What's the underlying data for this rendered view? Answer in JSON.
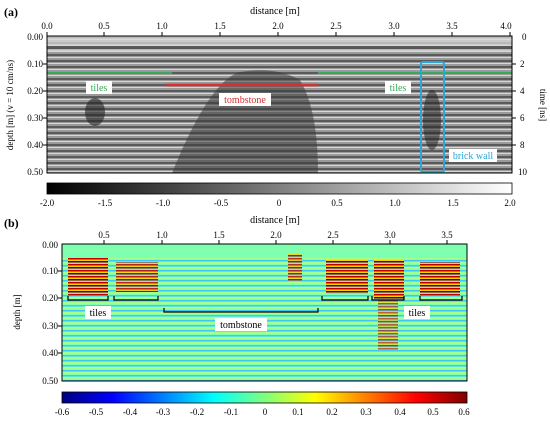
{
  "panel_a": {
    "label": "(a)",
    "top_axis": {
      "title": "distance [m]",
      "ticks": [
        "0.0",
        "0.5",
        "1.0",
        "1.5",
        "2.0",
        "2.5",
        "3.0",
        "3.5",
        "4.0"
      ]
    },
    "left_axis": {
      "title": "depth [m] (v = 10 cm/ns)",
      "ticks": [
        "0.00",
        "0.10",
        "0.20",
        "0.30",
        "0.40",
        "0.50"
      ]
    },
    "right_axis": {
      "title": "time [ns]",
      "ticks": [
        "0",
        "2",
        "4",
        "6",
        "8",
        "10"
      ]
    },
    "annotations": {
      "tiles_left": "tiles",
      "tombstone": "tombstone",
      "tiles_right": "tiles",
      "brick_wall": "brick wall"
    },
    "colorbar": {
      "scheme": "grayscale",
      "ticks": [
        "-2.0",
        "-1.5",
        "-1.0",
        "-0.5",
        "0",
        "0.5",
        "1.0",
        "1.5",
        "2.0"
      ]
    },
    "colors": {
      "tiles": "#3aa85a",
      "tombstone": "#d23232",
      "brick_wall": "#2aa6d8"
    }
  },
  "panel_b": {
    "label": "(b)",
    "top_axis": {
      "title": "distance [m]",
      "ticks": [
        "0.5",
        "1.0",
        "1.5",
        "2.0",
        "2.5",
        "3.0",
        "3.5"
      ]
    },
    "left_axis": {
      "title": "depth [m]",
      "ticks": [
        "0.00",
        "0.10",
        "0.20",
        "0.30",
        "0.40",
        "0.50"
      ]
    },
    "annotations": {
      "tiles_left": "tiles",
      "tombstone": "tombstone",
      "tiles_right": "tiles"
    },
    "colorbar": {
      "scheme": "jet",
      "ticks": [
        "-0.6",
        "-0.5",
        "-0.4",
        "-0.3",
        "-0.2",
        "-0.1",
        "0",
        "0.1",
        "0.2",
        "0.3",
        "0.4",
        "0.5",
        "0.6"
      ]
    }
  }
}
